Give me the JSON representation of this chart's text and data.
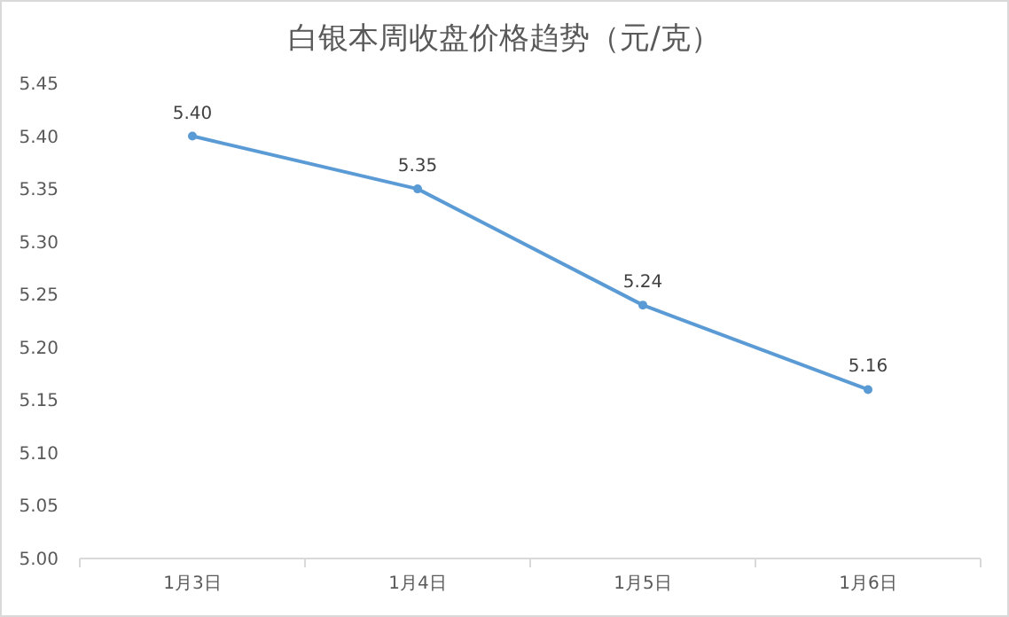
{
  "chart_data": {
    "type": "line",
    "title": "白银本周收盘价格趋势（元/克）",
    "categories": [
      "1月3日",
      "1月4日",
      "1月5日",
      "1月6日"
    ],
    "series": [
      {
        "color": "#5b9bd5",
        "values": [
          5.4,
          5.35,
          5.24,
          5.16
        ],
        "value_labels": [
          "5.40",
          "5.35",
          "5.24",
          "5.16"
        ]
      }
    ],
    "ylim": [
      5.0,
      5.45
    ],
    "yticks": [
      {
        "value": 5.0,
        "label": "5.00"
      },
      {
        "value": 5.05,
        "label": "5.05"
      },
      {
        "value": 5.1,
        "label": "5.10"
      },
      {
        "value": 5.15,
        "label": "5.15"
      },
      {
        "value": 5.2,
        "label": "5.20"
      },
      {
        "value": 5.25,
        "label": "5.25"
      },
      {
        "value": 5.3,
        "label": "5.30"
      },
      {
        "value": 5.35,
        "label": "5.35"
      },
      {
        "value": 5.4,
        "label": "5.40"
      },
      {
        "value": 5.45,
        "label": "5.45"
      }
    ],
    "marker": "circle",
    "line_style": "solid"
  }
}
